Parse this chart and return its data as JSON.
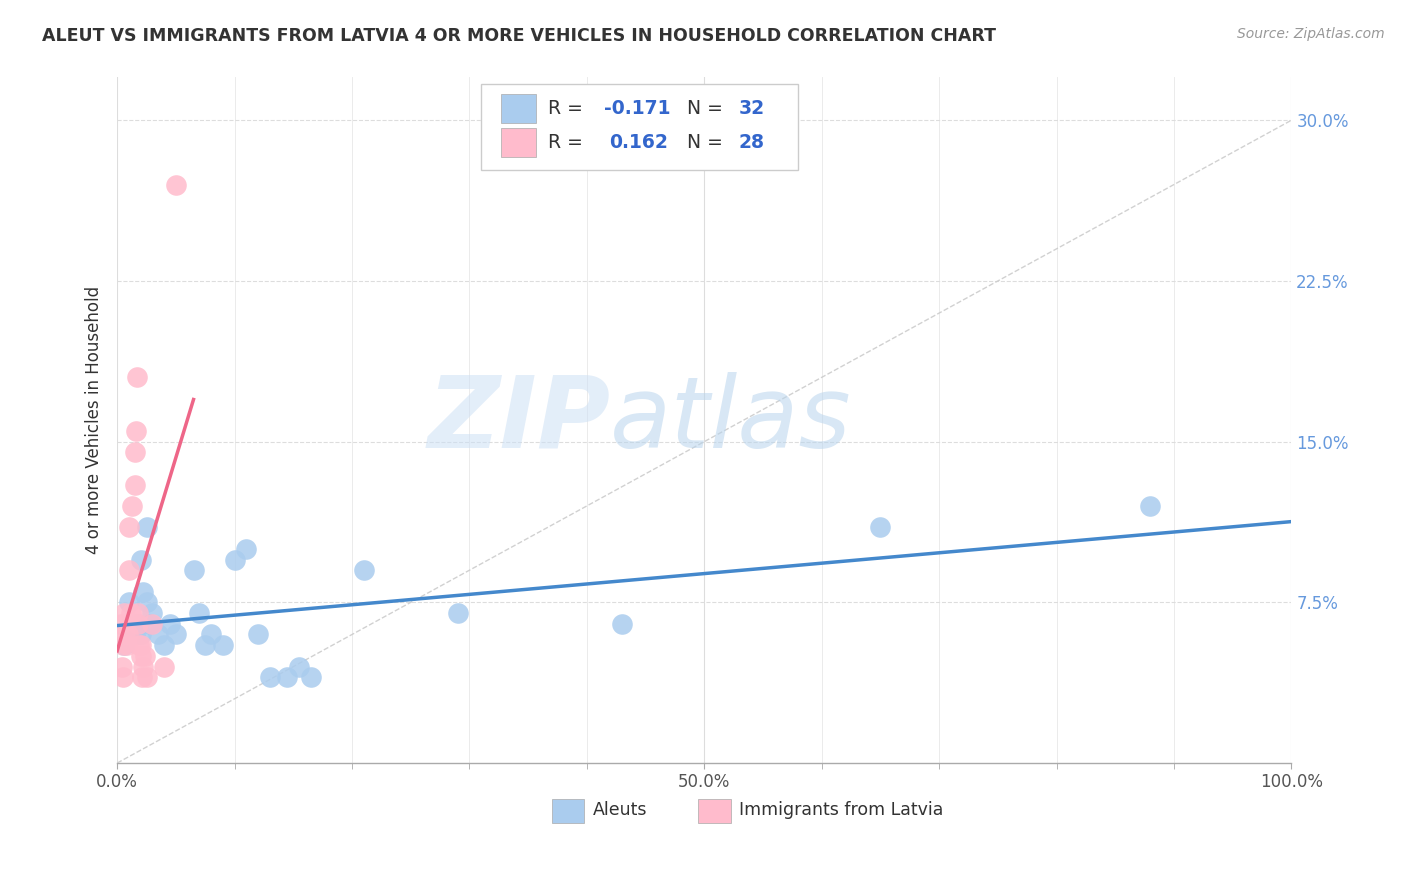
{
  "title": "ALEUT VS IMMIGRANTS FROM LATVIA 4 OR MORE VEHICLES IN HOUSEHOLD CORRELATION CHART",
  "source": "Source: ZipAtlas.com",
  "ylabel": "4 or more Vehicles in Household",
  "xlim": [
    0.0,
    1.0
  ],
  "ylim": [
    0.0,
    0.32
  ],
  "yticks": [
    0.075,
    0.15,
    0.225,
    0.3
  ],
  "yticklabels": [
    "7.5%",
    "15.0%",
    "22.5%",
    "30.0%"
  ],
  "grid_color": "#dddddd",
  "background_color": "#ffffff",
  "aleuts_color": "#aaccee",
  "latvia_color": "#ffbbcc",
  "aleuts_line_color": "#4488cc",
  "latvia_line_color": "#ee6688",
  "diag_color": "#cccccc",
  "aleuts_R": -0.171,
  "aleuts_N": 32,
  "latvia_R": 0.162,
  "latvia_N": 28,
  "legend_label_aleuts": "Aleuts",
  "legend_label_latvia": "Immigrants from Latvia",
  "watermark_zip": "ZIP",
  "watermark_atlas": "atlas",
  "label_color": "#6699dd",
  "legend_R_color": "#3366cc",
  "legend_N_color": "#3366cc",
  "aleuts_x": [
    0.006,
    0.01,
    0.015,
    0.018,
    0.02,
    0.02,
    0.022,
    0.025,
    0.025,
    0.028,
    0.03,
    0.035,
    0.04,
    0.045,
    0.05,
    0.065,
    0.07,
    0.075,
    0.08,
    0.09,
    0.1,
    0.11,
    0.12,
    0.13,
    0.145,
    0.155,
    0.165,
    0.21,
    0.29,
    0.43,
    0.65,
    0.88
  ],
  "aleuts_y": [
    0.055,
    0.075,
    0.06,
    0.065,
    0.095,
    0.06,
    0.08,
    0.11,
    0.075,
    0.065,
    0.07,
    0.06,
    0.055,
    0.065,
    0.06,
    0.09,
    0.07,
    0.055,
    0.06,
    0.055,
    0.095,
    0.1,
    0.06,
    0.04,
    0.04,
    0.045,
    0.04,
    0.09,
    0.07,
    0.065,
    0.11,
    0.12
  ],
  "latvia_x": [
    0.003,
    0.004,
    0.005,
    0.005,
    0.006,
    0.007,
    0.008,
    0.009,
    0.01,
    0.01,
    0.012,
    0.013,
    0.015,
    0.015,
    0.016,
    0.017,
    0.018,
    0.018,
    0.019,
    0.02,
    0.02,
    0.021,
    0.022,
    0.024,
    0.025,
    0.03,
    0.04,
    0.05
  ],
  "latvia_y": [
    0.065,
    0.045,
    0.055,
    0.04,
    0.07,
    0.06,
    0.055,
    0.06,
    0.09,
    0.11,
    0.07,
    0.12,
    0.13,
    0.145,
    0.155,
    0.18,
    0.065,
    0.07,
    0.055,
    0.055,
    0.05,
    0.04,
    0.045,
    0.05,
    0.04,
    0.065,
    0.045,
    0.27
  ]
}
